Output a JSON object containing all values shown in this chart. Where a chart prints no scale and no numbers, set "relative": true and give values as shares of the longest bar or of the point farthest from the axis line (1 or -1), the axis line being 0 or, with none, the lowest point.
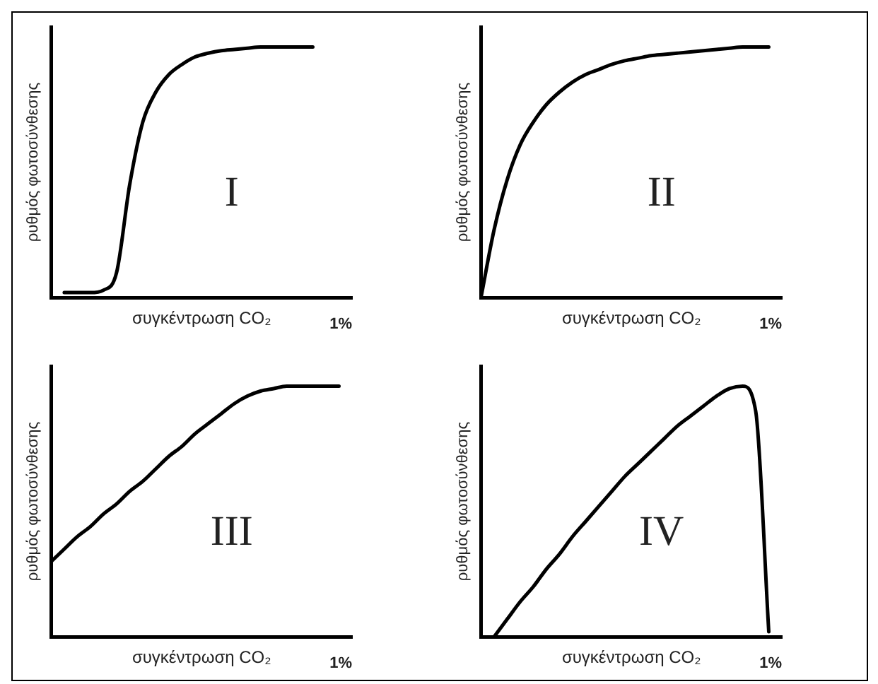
{
  "chart_data": [
    {
      "type": "line",
      "relative": true,
      "tick_labels": false,
      "marker": "none",
      "xlabel": "συγκέντρωση CO₂",
      "ylabel": "ρυθμός φωτοσύνθεσης",
      "annotations": [
        "I",
        "1%"
      ],
      "categories": [
        null,
        null,
        null,
        null,
        null,
        null,
        null,
        null,
        null,
        null,
        null,
        null,
        null,
        null,
        null,
        null,
        null,
        null,
        null,
        null,
        null,
        null,
        null,
        null
      ],
      "series": [
        {
          "color": "#000000",
          "values": [
            null,
            0.02,
            0.02,
            0.02,
            0.03,
            0.1,
            0.45,
            0.7,
            0.82,
            0.89,
            0.93,
            0.96,
            0.975,
            0.985,
            0.99,
            0.995,
            1,
            1,
            1,
            1,
            1,
            null,
            null,
            null
          ]
        }
      ]
    },
    {
      "type": "line",
      "relative": true,
      "tick_labels": false,
      "marker": "none",
      "xlabel": "συγκέντρωση CO₂",
      "ylabel": "ρυθμός φωτοσύνθεσης",
      "annotations": [
        "II",
        "1%"
      ],
      "categories": [
        null,
        null,
        null,
        null,
        null,
        null,
        null,
        null,
        null,
        null,
        null,
        null,
        null,
        null,
        null,
        null,
        null,
        null,
        null,
        null,
        null,
        null,
        null,
        null
      ],
      "series": [
        {
          "color": "#000000",
          "values": [
            0,
            0.27,
            0.47,
            0.61,
            0.7,
            0.77,
            0.82,
            0.86,
            0.89,
            0.91,
            0.93,
            0.945,
            0.955,
            0.965,
            0.97,
            0.975,
            0.98,
            0.985,
            0.99,
            0.995,
            1,
            1,
            1,
            null
          ]
        }
      ]
    },
    {
      "type": "line",
      "relative": true,
      "tick_labels": false,
      "marker": "none",
      "xlabel": "συγκέντρωση CO₂",
      "ylabel": "ρυθμός φωτοσύνθεσης",
      "annotations": [
        "III",
        "1%"
      ],
      "categories": [
        null,
        null,
        null,
        null,
        null,
        null,
        null,
        null,
        null,
        null,
        null,
        null,
        null,
        null,
        null,
        null,
        null,
        null,
        null,
        null,
        null,
        null,
        null,
        null
      ],
      "series": [
        {
          "color": "#000000",
          "values": [
            0.3,
            0.35,
            0.4,
            0.44,
            0.49,
            0.53,
            0.58,
            0.62,
            0.67,
            0.72,
            0.76,
            0.81,
            0.85,
            0.89,
            0.93,
            0.96,
            0.98,
            0.99,
            1,
            1,
            1,
            1,
            1,
            null
          ]
        }
      ]
    },
    {
      "type": "line",
      "relative": true,
      "tick_labels": false,
      "marker": "none",
      "xlabel": "συγκέντρωση CO₂",
      "ylabel": "ρυθμός φωτοσύνθεσης",
      "annotations": [
        "IV",
        "1%"
      ],
      "categories": [
        null,
        null,
        null,
        null,
        null,
        null,
        null,
        null,
        null,
        null,
        null,
        null,
        null,
        null,
        null,
        null,
        null,
        null,
        null,
        null,
        null,
        null,
        null,
        null
      ],
      "series": [
        {
          "color": "#000000",
          "values": [
            null,
            0,
            0.07,
            0.14,
            0.2,
            0.27,
            0.33,
            0.4,
            0.46,
            0.52,
            0.58,
            0.64,
            0.69,
            0.74,
            0.79,
            0.84,
            0.88,
            0.92,
            0.96,
            0.99,
            1,
            0.9,
            0.02,
            null
          ]
        }
      ]
    }
  ]
}
